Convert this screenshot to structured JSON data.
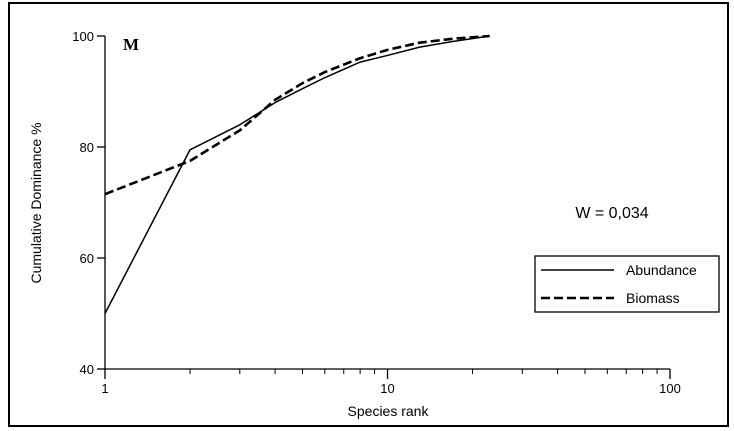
{
  "chart_data": {
    "type": "line",
    "panel_label": "M",
    "xlabel": "Species rank",
    "ylabel": "Cumulative Dominance %",
    "x_scale": "log",
    "xlim": [
      1,
      100
    ],
    "ylim": [
      40,
      100
    ],
    "x_ticks": [
      1,
      10,
      100
    ],
    "y_ticks": [
      40,
      60,
      80,
      100
    ],
    "grid": false,
    "legend_position": "right",
    "annotation": "W = 0,034",
    "series": [
      {
        "name": "Abundance",
        "style": "solid",
        "color": "#000000",
        "points": [
          [
            1,
            50
          ],
          [
            2,
            79.5
          ],
          [
            3,
            84
          ],
          [
            4,
            88
          ],
          [
            5,
            90.5
          ],
          [
            6,
            92.5
          ],
          [
            8,
            95.3
          ],
          [
            10,
            96.5
          ],
          [
            13,
            98
          ],
          [
            17,
            99
          ],
          [
            23,
            100
          ]
        ]
      },
      {
        "name": "Biomass",
        "style": "dashed",
        "color": "#000000",
        "points": [
          [
            1,
            71.5
          ],
          [
            2,
            77.5
          ],
          [
            3,
            83
          ],
          [
            4,
            88.5
          ],
          [
            5,
            91.5
          ],
          [
            6,
            93.5
          ],
          [
            8,
            96
          ],
          [
            10,
            97.5
          ],
          [
            13,
            98.8
          ],
          [
            17,
            99.5
          ],
          [
            23,
            100
          ]
        ]
      }
    ]
  }
}
